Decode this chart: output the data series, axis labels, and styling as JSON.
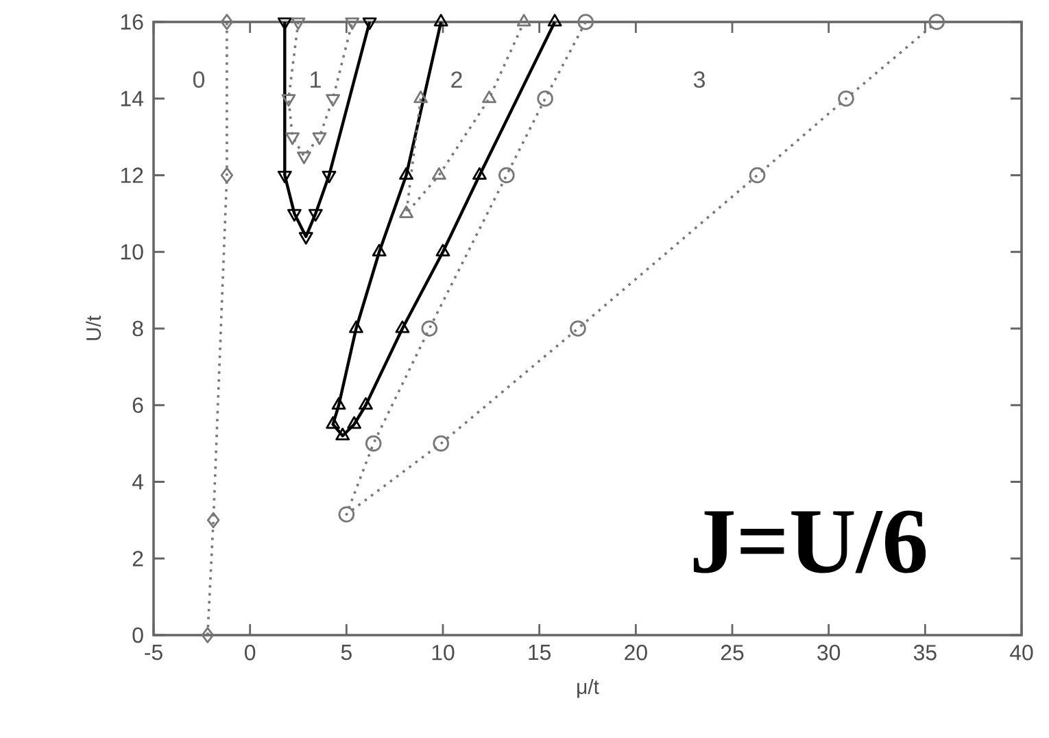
{
  "chart_data": {
    "type": "line",
    "xlabel": "μ/t",
    "ylabel": "U/t",
    "xlim": [
      -5,
      40
    ],
    "ylim": [
      0,
      16
    ],
    "xticks": [
      -5,
      0,
      5,
      10,
      15,
      20,
      25,
      30,
      35,
      40
    ],
    "yticks": [
      0,
      2,
      4,
      6,
      8,
      10,
      12,
      14,
      16
    ],
    "grid": false,
    "series": [
      {
        "color": "#777777",
        "marker": "diamond",
        "line_style": "dotted",
        "x": [
          -2.2,
          -1.9,
          -1.2,
          -1.2
        ],
        "values": [
          0,
          3,
          12,
          16
        ]
      },
      {
        "color": "#000000",
        "marker": "triangle-down",
        "line_style": "solid",
        "x": [
          1.8,
          1.8,
          2.3,
          2.9,
          3.4,
          4.1,
          6.2
        ],
        "values": [
          16,
          12,
          11,
          10.4,
          11,
          12,
          16
        ]
      },
      {
        "color": "#777777",
        "marker": "triangle-down",
        "line_style": "dotted",
        "x": [
          2.5,
          2.0,
          2.2,
          2.8,
          3.6,
          4.3,
          5.3
        ],
        "values": [
          16,
          14,
          13,
          12.5,
          13,
          14,
          16
        ]
      },
      {
        "color": "#000000",
        "marker": "triangle",
        "line_style": "solid",
        "x": [
          9.9,
          8.1,
          6.7,
          5.5,
          4.6,
          4.3,
          4.8,
          5.4,
          6.0,
          7.9,
          10.0,
          11.9,
          15.8
        ],
        "values": [
          16,
          12,
          10,
          8,
          6,
          5.5,
          5.2,
          5.5,
          6,
          8,
          10,
          12,
          16
        ]
      },
      {
        "color": "#777777",
        "marker": "triangle",
        "line_style": "dotted",
        "x": [
          8.85,
          8.1,
          9.8,
          12.4,
          14.2
        ],
        "values": [
          14,
          11,
          12,
          14,
          16
        ]
      },
      {
        "color": "#777777",
        "marker": "circle",
        "line_style": "dotted",
        "x": [
          17.4,
          15.3,
          13.3,
          9.3,
          6.4,
          5.0,
          9.9,
          17.0,
          26.3,
          30.9,
          35.6
        ],
        "values": [
          16,
          14,
          12,
          8,
          5,
          3.15,
          5,
          8,
          12,
          14,
          16
        ]
      }
    ],
    "annotations": [
      "0",
      "1",
      "2",
      "3",
      "J=U/6"
    ]
  }
}
